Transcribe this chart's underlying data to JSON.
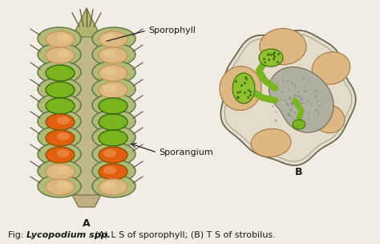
{
  "bg_color": "#f0ede4",
  "fig_width": 4.74,
  "fig_height": 3.04,
  "caption_normal": "Fig: ",
  "caption_italic": "Lycopodium spp.",
  "caption_rest": " (A) L S of sporophyll; (B) T S of strobilus.",
  "label_A": "A",
  "label_B": "B",
  "label_sporophyll": "Sporophyll",
  "label_sporangium": "Sporangium",
  "text_color": "#1a1a1a",
  "green_color": "#7ab520",
  "orange_color": "#e06010",
  "tan_color": "#deb882",
  "tan_dark": "#c8985a",
  "dark_green": "#3a6a08",
  "stem_color": "#c8b890",
  "leaf_color": "#a8b878",
  "leaf_edge": "#607040",
  "gray_color": "#a0a090",
  "outline_color": "#555544"
}
